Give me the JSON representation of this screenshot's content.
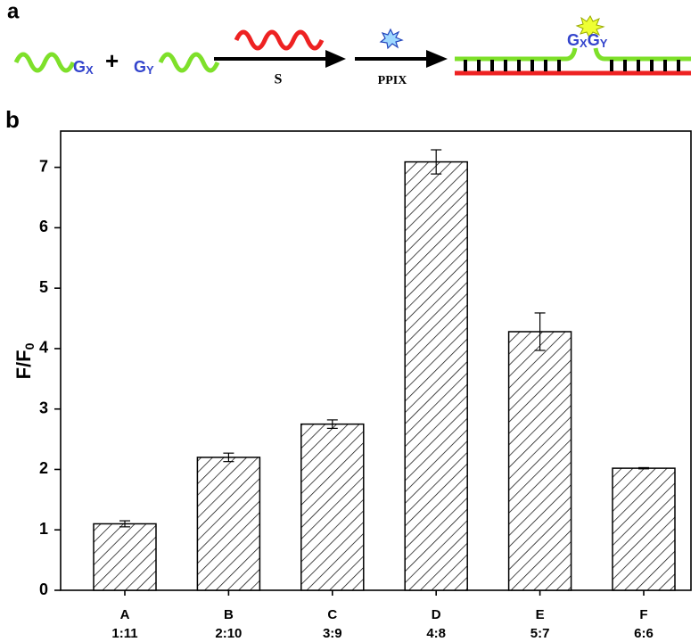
{
  "diagram": {
    "panel_label": "a",
    "left_g": "G",
    "left_sub": "X",
    "plus": "+",
    "right_g": "G",
    "right_sub": "Y",
    "arrow1_label": "S",
    "arrow2_label": "PPIX",
    "product": [
      "G",
      "X",
      "G",
      "Y"
    ]
  },
  "chart_data": {
    "type": "bar",
    "panel_label": "b",
    "ylabel": "F/F",
    "ylabel_sub": "0",
    "categories": [
      "A",
      "B",
      "C",
      "D",
      "E",
      "F"
    ],
    "ratios": [
      "1:11",
      "2:10",
      "3:9",
      "4:8",
      "5:7",
      "6:6"
    ],
    "values": [
      1.1,
      2.2,
      2.75,
      7.09,
      4.28,
      2.02
    ],
    "errors": [
      0.05,
      0.07,
      0.07,
      0.2,
      0.31,
      0.01
    ],
    "color": "#000000",
    "ylim": [
      0,
      7.6
    ],
    "yticks": [
      0,
      1,
      2,
      3,
      4,
      5,
      6,
      7
    ]
  }
}
